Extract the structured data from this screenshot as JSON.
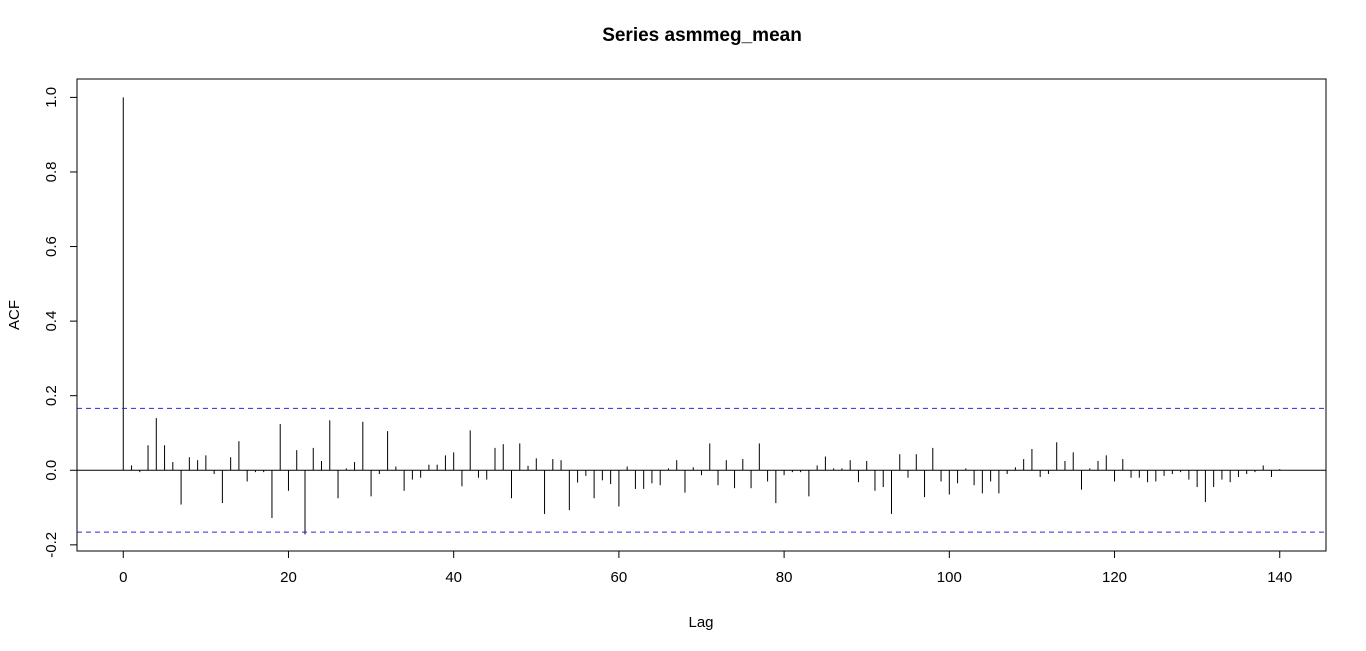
{
  "chart_data": {
    "type": "bar",
    "title": "Series  asmmeg_mean",
    "xlabel": "Lag",
    "ylabel": "ACF",
    "xlim": [
      -5.6,
      145.6
    ],
    "ylim": [
      -0.2165,
      1.0493
    ],
    "x_ticks": [
      0,
      20,
      40,
      60,
      80,
      100,
      120,
      140
    ],
    "x_tick_labels": [
      "0",
      "20",
      "40",
      "60",
      "80",
      "100",
      "120",
      "140"
    ],
    "y_ticks": [
      -0.2,
      0.0,
      0.2,
      0.4,
      0.6,
      0.8,
      1.0
    ],
    "y_tick_labels": [
      "-0.2",
      "0.0",
      "0.2",
      "0.4",
      "0.6",
      "0.8",
      "1.0"
    ],
    "confidence_bound": 0.166,
    "grid": false,
    "lags": [
      0,
      1,
      2,
      3,
      4,
      5,
      6,
      7,
      8,
      9,
      10,
      11,
      12,
      13,
      14,
      15,
      16,
      17,
      18,
      19,
      20,
      21,
      22,
      23,
      24,
      25,
      26,
      27,
      28,
      29,
      30,
      31,
      32,
      33,
      34,
      35,
      36,
      37,
      38,
      39,
      40,
      41,
      42,
      43,
      44,
      45,
      46,
      47,
      48,
      49,
      50,
      51,
      52,
      53,
      54,
      55,
      56,
      57,
      58,
      59,
      60,
      61,
      62,
      63,
      64,
      65,
      66,
      67,
      68,
      69,
      70,
      71,
      72,
      73,
      74,
      75,
      76,
      77,
      78,
      79,
      80,
      81,
      82,
      83,
      84,
      85,
      86,
      87,
      88,
      89,
      90,
      91,
      92,
      93,
      94,
      95,
      96,
      97,
      98,
      99,
      100,
      101,
      102,
      103,
      104,
      105,
      106,
      107,
      108,
      109,
      110,
      111,
      112,
      113,
      114,
      115,
      116,
      117,
      118,
      119,
      120,
      121,
      122,
      123,
      124,
      125,
      126,
      127,
      128,
      129,
      130,
      131,
      132,
      133,
      134,
      135,
      136,
      137,
      138,
      139,
      140
    ],
    "acf": [
      1.0,
      0.013,
      -0.005,
      0.067,
      0.14,
      0.067,
      0.022,
      -0.092,
      0.035,
      0.027,
      0.04,
      -0.01,
      -0.088,
      0.035,
      0.078,
      -0.03,
      -0.005,
      -0.005,
      -0.128,
      0.124,
      -0.055,
      0.054,
      -0.172,
      0.06,
      0.025,
      0.134,
      -0.075,
      0.005,
      0.022,
      0.13,
      -0.07,
      -0.01,
      0.105,
      0.01,
      -0.055,
      -0.025,
      -0.02,
      0.015,
      0.015,
      0.04,
      0.048,
      -0.043,
      0.107,
      -0.02,
      -0.025,
      0.06,
      0.07,
      -0.075,
      0.072,
      0.012,
      0.032,
      -0.117,
      0.03,
      0.027,
      -0.107,
      -0.033,
      -0.015,
      -0.075,
      -0.027,
      -0.037,
      -0.097,
      0.01,
      -0.05,
      -0.05,
      -0.035,
      -0.04,
      0.005,
      0.027,
      -0.06,
      0.008,
      -0.013,
      0.072,
      -0.04,
      0.027,
      -0.048,
      0.03,
      -0.048,
      0.072,
      -0.03,
      -0.088,
      -0.013,
      -0.005,
      -0.005,
      -0.07,
      0.013,
      0.037,
      0.005,
      0.005,
      0.027,
      -0.032,
      0.025,
      -0.055,
      -0.045,
      -0.117,
      0.043,
      -0.02,
      0.043,
      -0.072,
      0.06,
      -0.03,
      -0.065,
      -0.035,
      0.005,
      -0.04,
      -0.062,
      -0.03,
      -0.062,
      -0.01,
      0.008,
      0.03,
      0.057,
      -0.018,
      -0.01,
      0.075,
      0.025,
      0.048,
      -0.052,
      0.005,
      0.025,
      0.04,
      -0.03,
      0.03,
      -0.02,
      -0.02,
      -0.032,
      -0.03,
      -0.015,
      -0.01,
      -0.005,
      -0.025,
      -0.045,
      -0.085,
      -0.045,
      -0.025,
      -0.032,
      -0.018,
      -0.01,
      -0.005,
      0.013,
      -0.018,
      0.003
    ]
  }
}
